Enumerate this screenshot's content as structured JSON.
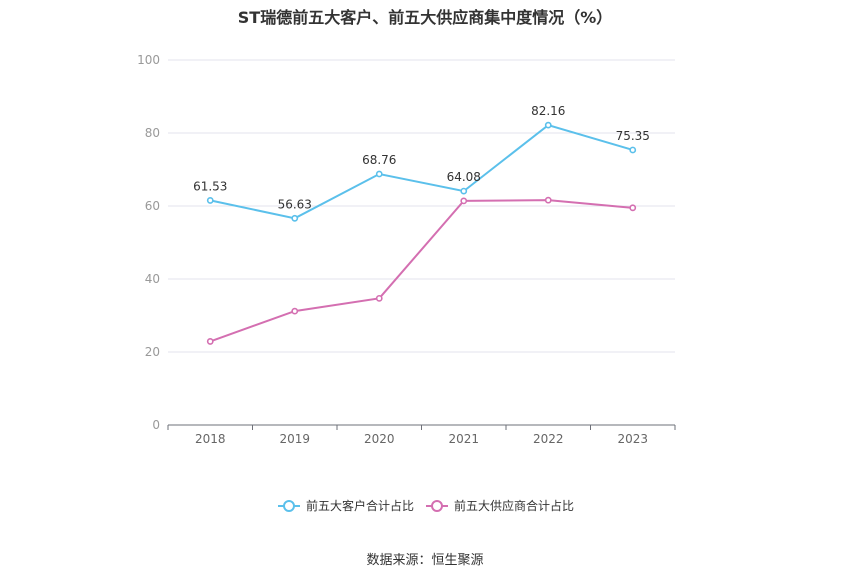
{
  "title": "ST瑞德前五大客户、前五大供应商集中度情况（%）",
  "source": "数据来源：恒生聚源",
  "chart_data": {
    "type": "line",
    "title": "ST瑞德前五大客户、前五大供应商集中度情况（%）",
    "categories": [
      "2018",
      "2019",
      "2020",
      "2021",
      "2022",
      "2023"
    ],
    "ylim": [
      0,
      100
    ],
    "yticks": [
      0,
      20,
      40,
      60,
      80,
      100
    ],
    "grid": true,
    "legend_position": "bottom",
    "series": [
      {
        "name": "前五大客户合计占比",
        "values": [
          61.53,
          56.63,
          68.76,
          64.08,
          82.16,
          75.35
        ],
        "labels": [
          "61.53",
          "56.63",
          "68.76",
          "64.08",
          "82.16",
          "75.35"
        ],
        "color": "#5bc0eb"
      },
      {
        "name": "前五大供应商合计占比",
        "values": [
          22.9,
          31.2,
          34.7,
          61.4,
          61.6,
          59.5
        ],
        "color": "#d46fb1"
      }
    ]
  }
}
